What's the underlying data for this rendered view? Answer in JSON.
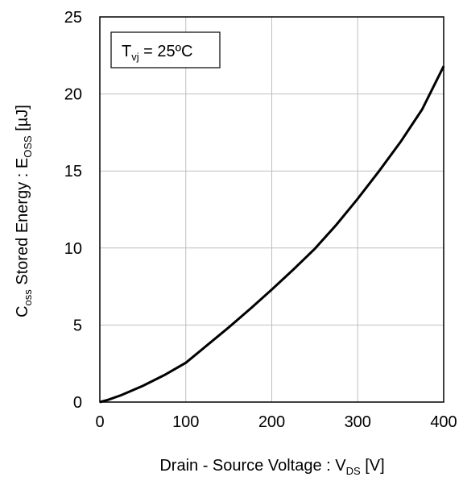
{
  "chart_data": {
    "type": "line",
    "xlabel": {
      "main": "Drain - Source Voltage : V",
      "sub": "DS",
      "unit": " [V]"
    },
    "ylabel": {
      "c": "C",
      "c_sub": "oss",
      "mid": " Stored Energy : E",
      "e_sub": "OSS",
      "unit": " [µJ]"
    },
    "annotation": {
      "t": "T",
      "t_sub": "vj",
      "rest": " = 25ºC"
    },
    "xlim": [
      0,
      400
    ],
    "ylim": [
      0,
      25
    ],
    "xticks": [
      "0",
      "100",
      "200",
      "300",
      "400"
    ],
    "yticks": [
      "0",
      "5",
      "10",
      "15",
      "20",
      "25"
    ],
    "grid": true,
    "series": [
      {
        "x": [
          0,
          10,
          25,
          50,
          75,
          100,
          125,
          150,
          175,
          200,
          225,
          250,
          275,
          300,
          325,
          350,
          375,
          400
        ],
        "y": [
          0,
          0.15,
          0.45,
          1.05,
          1.75,
          2.55,
          3.7,
          4.85,
          6.05,
          7.3,
          8.6,
          9.95,
          11.5,
          13.2,
          15.0,
          16.9,
          19.0,
          21.8
        ]
      }
    ]
  }
}
